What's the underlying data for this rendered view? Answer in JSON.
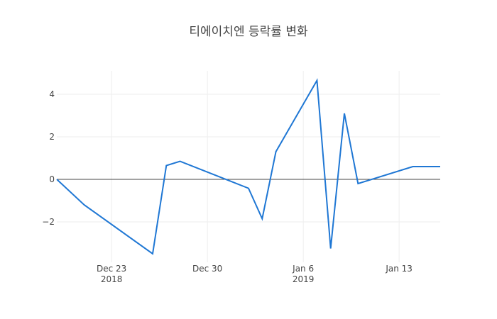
{
  "chart_data": {
    "type": "line",
    "title": "티에이치엔 등락률 변화",
    "xlabel": "",
    "ylabel": "",
    "x_tick_labels": [
      {
        "date": "2018-12-23",
        "label": "Dec 23",
        "sublabel": "2018"
      },
      {
        "date": "2018-12-30",
        "label": "Dec 30",
        "sublabel": ""
      },
      {
        "date": "2019-01-06",
        "label": "Jan 6",
        "sublabel": "2019"
      },
      {
        "date": "2019-01-13",
        "label": "Jan 13",
        "sublabel": ""
      }
    ],
    "y_tick_labels": [
      {
        "value": -2,
        "label": "−2"
      },
      {
        "value": 0,
        "label": "0"
      },
      {
        "value": 2,
        "label": "2"
      },
      {
        "value": 4,
        "label": "4"
      }
    ],
    "xlim": [
      "2018-12-19",
      "2019-01-16"
    ],
    "ylim": [
      -3.9,
      5.1
    ],
    "grid": true,
    "zero_line": true,
    "series_color": "#1f77d4",
    "series": [
      {
        "name": "",
        "points": [
          {
            "x": "2018-12-19",
            "y": 0.0
          },
          {
            "x": "2018-12-21",
            "y": -1.2
          },
          {
            "x": "2018-12-26",
            "y": -3.5
          },
          {
            "x": "2018-12-27",
            "y": 0.65
          },
          {
            "x": "2018-12-28",
            "y": 0.85
          },
          {
            "x": "2019-01-02",
            "y": -0.42
          },
          {
            "x": "2019-01-03",
            "y": -1.85
          },
          {
            "x": "2019-01-04",
            "y": 1.3
          },
          {
            "x": "2019-01-07",
            "y": 4.65
          },
          {
            "x": "2019-01-08",
            "y": -3.25
          },
          {
            "x": "2019-01-09",
            "y": 3.1
          },
          {
            "x": "2019-01-10",
            "y": -0.2
          },
          {
            "x": "2019-01-14",
            "y": 0.6
          },
          {
            "x": "2019-01-16",
            "y": 0.6
          }
        ]
      }
    ]
  }
}
